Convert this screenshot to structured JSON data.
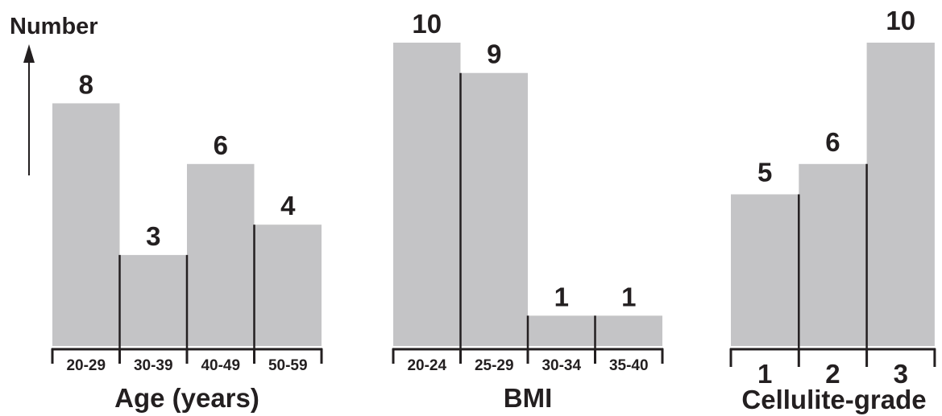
{
  "figure": {
    "y_axis_title": "Number",
    "colors": {
      "bar_fill": "#c4c4c6",
      "ink": "#231f20"
    }
  },
  "chart_data": [
    {
      "type": "bar",
      "categories": [
        "20-29",
        "30-39",
        "40-49",
        "50-59"
      ],
      "values": [
        8,
        3,
        6,
        4
      ],
      "xlabel": "Age (years)",
      "ylabel": "Number",
      "ylim": [
        0,
        10
      ]
    },
    {
      "type": "bar",
      "categories": [
        "20-24",
        "25-29",
        "30-34",
        "35-40"
      ],
      "values": [
        10,
        9,
        1,
        1
      ],
      "xlabel": "BMI",
      "ylabel": "",
      "ylim": [
        0,
        10
      ]
    },
    {
      "type": "bar",
      "categories": [
        "1",
        "2",
        "3"
      ],
      "values": [
        5,
        6,
        10
      ],
      "xlabel": "Cellulite-grade",
      "ylabel": "",
      "ylim": [
        0,
        10
      ]
    }
  ]
}
